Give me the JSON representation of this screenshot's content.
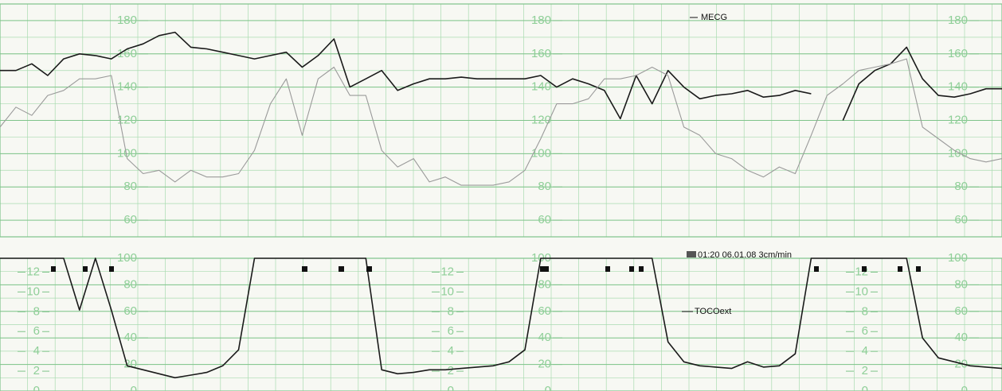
{
  "chart_data": [
    {
      "type": "line",
      "series": [
        {
          "name": "MECG",
          "color": "#1a1a1a",
          "values": [
            150,
            150,
            154,
            147,
            157,
            160,
            159,
            157,
            163,
            166,
            171,
            173,
            164,
            163,
            161,
            159,
            157,
            159,
            161,
            152,
            159,
            169,
            140,
            145,
            150,
            138,
            142,
            145,
            145,
            146,
            145,
            145,
            145,
            145,
            147,
            140,
            145,
            142,
            138,
            121,
            147,
            130,
            150,
            140,
            133,
            135,
            136,
            138,
            134,
            135,
            138,
            136,
            null,
            120,
            142,
            150,
            154,
            164,
            145,
            135,
            134,
            136,
            139,
            139
          ]
        },
        {
          "color": "#9a9a9a",
          "values": [
            116,
            128,
            123,
            135,
            138,
            145,
            145,
            147,
            97,
            88,
            90,
            83,
            90,
            86,
            86,
            88,
            102,
            130,
            145,
            111,
            145,
            152,
            135,
            135,
            102,
            92,
            97,
            83,
            86,
            81,
            81,
            81,
            83,
            90,
            109,
            130,
            130,
            133,
            145,
            145,
            147,
            152,
            147,
            116,
            111,
            100,
            97,
            90,
            86,
            92,
            88,
            111,
            135,
            142,
            150,
            152,
            154,
            157,
            116,
            109,
            102,
            97,
            95,
            97
          ]
        }
      ],
      "ylim": [
        50,
        190
      ],
      "yticks": [
        60,
        80,
        100,
        120,
        140,
        160,
        180
      ],
      "grid": true
    },
    {
      "type": "line",
      "series": [
        {
          "name": "TOCOext",
          "color": "#1a1a1a",
          "values": [
            100,
            100,
            100,
            100,
            100,
            61,
            100,
            61,
            19,
            16,
            13,
            10,
            12,
            14,
            19,
            31,
            100,
            100,
            100,
            100,
            100,
            100,
            100,
            100,
            16,
            13,
            14,
            16,
            16,
            17,
            18,
            19,
            22,
            31,
            100,
            100,
            100,
            100,
            100,
            100,
            100,
            100,
            37,
            22,
            19,
            18,
            17,
            22,
            18,
            19,
            28,
            100,
            100,
            100,
            100,
            100,
            100,
            100,
            40,
            25,
            22,
            19,
            18,
            17
          ]
        }
      ],
      "ylim": [
        0,
        100
      ],
      "yticks": [
        0,
        20,
        40,
        60,
        80,
        100
      ],
      "y2lim": [
        0,
        13.4
      ],
      "y2ticks": [
        0,
        2,
        4,
        6,
        8,
        10,
        12
      ],
      "annotation": "01:20 06.01.08 3cm/min",
      "grid": true
    }
  ]
}
